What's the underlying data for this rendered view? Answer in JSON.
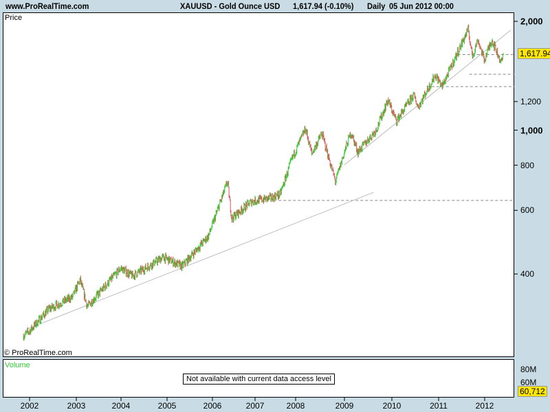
{
  "header": {
    "site": "www.ProRealTime.com",
    "instrument": "XAUUSD - Gold Ounce USD",
    "last": "1,617.94 (-0.10%)",
    "period": "Daily",
    "datetime": "05 Jun 2012 00:00"
  },
  "price_panel": {
    "label": "Price",
    "copyright": "© ProRealTime.com",
    "last_badge": "1,617.94"
  },
  "volume_panel": {
    "label": "Volume",
    "message": "Not available with current data access level",
    "ticks": [
      "80M",
      "60M"
    ],
    "last_badge": "60,712",
    "label_color": "#33cc33"
  },
  "colors": {
    "up": "#33cc33",
    "down": "#e05555",
    "background": "#c9dce5"
  },
  "chart_data": {
    "type": "candlestick",
    "scale": "log",
    "y_ticks": [
      {
        "v": 2000,
        "t": "2,000",
        "bold": true
      },
      {
        "v": 1200,
        "t": "1,200"
      },
      {
        "v": 1000,
        "t": "1,000",
        "bold": true
      },
      {
        "v": 800,
        "t": "800"
      },
      {
        "v": 600,
        "t": "600"
      },
      {
        "v": 400,
        "t": "400"
      }
    ],
    "x_ticks": [
      "2002",
      "2003",
      "2004",
      "2005",
      "2006",
      "2007",
      "2008",
      "2009",
      "2010",
      "2011",
      "2012"
    ],
    "last_price": 1617.94,
    "approx_closes": [
      [
        "2001-11-15",
        270
      ],
      [
        "2002-01-01",
        278
      ],
      [
        "2002-06-01",
        320
      ],
      [
        "2002-12-01",
        345
      ],
      [
        "2003-02-01",
        385
      ],
      [
        "2003-04-01",
        325
      ],
      [
        "2003-12-31",
        415
      ],
      [
        "2004-04-01",
        395
      ],
      [
        "2004-12-01",
        445
      ],
      [
        "2005-05-01",
        420
      ],
      [
        "2005-12-01",
        510
      ],
      [
        "2006-05-10",
        720
      ],
      [
        "2006-06-15",
        570
      ],
      [
        "2006-12-01",
        635
      ],
      [
        "2007-06-01",
        650
      ],
      [
        "2007-08-15",
        665
      ],
      [
        "2007-12-01",
        835
      ],
      [
        "2008-03-15",
        1010
      ],
      [
        "2008-05-01",
        860
      ],
      [
        "2008-07-15",
        980
      ],
      [
        "2008-10-25",
        720
      ],
      [
        "2008-12-31",
        870
      ],
      [
        "2009-02-20",
        985
      ],
      [
        "2009-04-15",
        870
      ],
      [
        "2009-09-01",
        1000
      ],
      [
        "2009-12-02",
        1210
      ],
      [
        "2010-02-05",
        1060
      ],
      [
        "2010-06-20",
        1250
      ],
      [
        "2010-07-25",
        1160
      ],
      [
        "2010-12-07",
        1420
      ],
      [
        "2011-01-28",
        1320
      ],
      [
        "2011-04-30",
        1550
      ],
      [
        "2011-08-23",
        1900
      ],
      [
        "2011-09-26",
        1600
      ],
      [
        "2011-11-08",
        1780
      ],
      [
        "2011-12-29",
        1560
      ],
      [
        "2012-02-28",
        1780
      ],
      [
        "2012-05-15",
        1540
      ],
      [
        "2012-06-05",
        1617.94
      ]
    ],
    "trendlines": [
      [
        [
          "2001-12-15",
          282
        ],
        [
          "2009-08-15",
          673
        ]
      ],
      [
        [
          "2009-01-01",
          802
        ],
        [
          "2012-08-01",
          1891
        ]
      ]
    ],
    "horizontal_levels": [
      {
        "price": 639,
        "from": "2007-08-01"
      },
      {
        "price": 1617.94,
        "from": "2011-06-01"
      },
      {
        "price": 1428,
        "from": "2011-09-01"
      },
      {
        "price": 1320,
        "from": "2010-10-01"
      }
    ]
  }
}
